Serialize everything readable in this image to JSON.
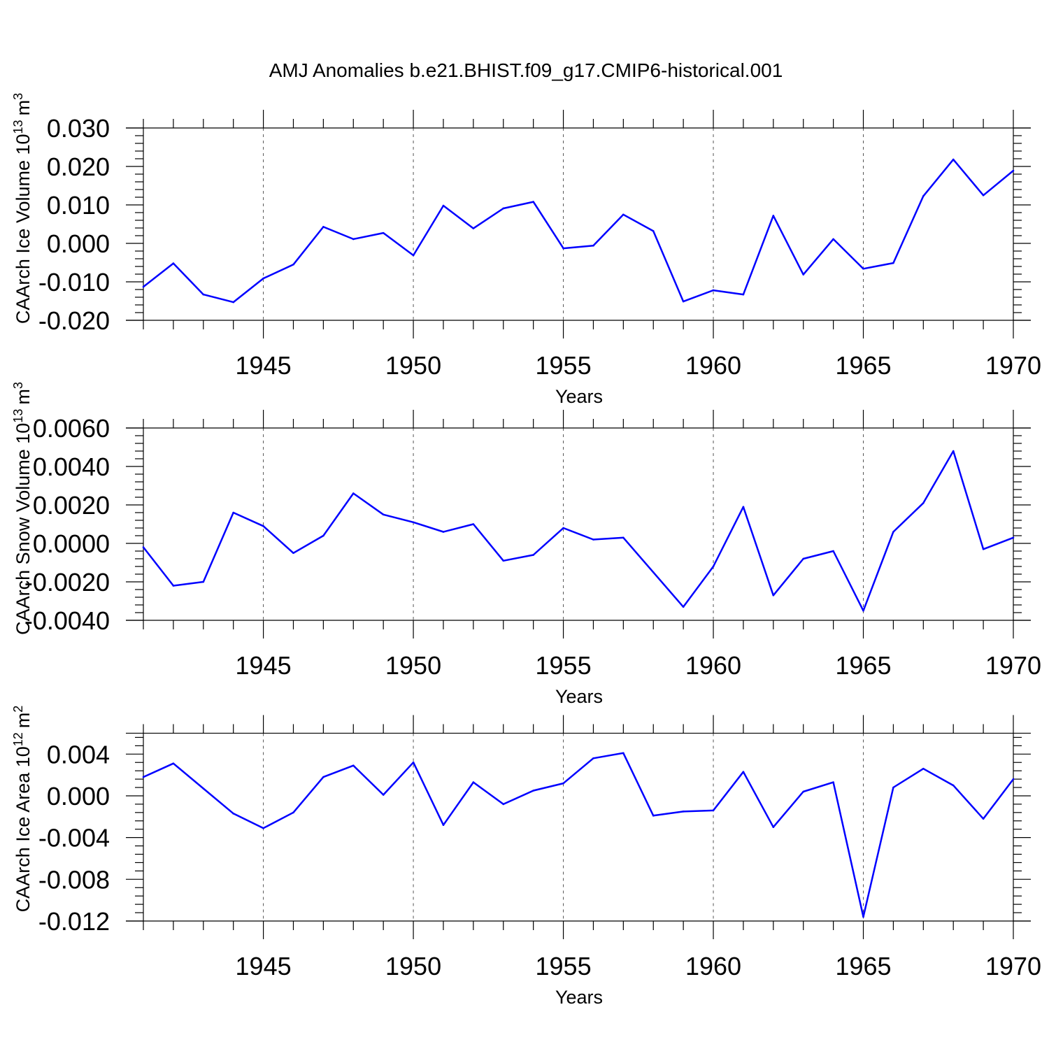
{
  "title": "AMJ Anomalies b.e21.BHIST.f09_g17.CMIP6-historical.001",
  "chart_data": [
    {
      "type": "line",
      "title": "AMJ Anomalies b.e21.BHIST.f09_g17.CMIP6-historical.001",
      "ylabel": "CAArch Ice Volume 10^13 m^3",
      "ylabel_base": "CAArch Ice Volume 10",
      "ylabel_exp": "13",
      "ylabel_unit": "m",
      "ylabel_unit_exp": "3",
      "xlabel": "Years",
      "xlim": [
        1941,
        1970
      ],
      "ylim": [
        -0.02,
        0.03
      ],
      "xticks": [
        1945,
        1950,
        1955,
        1960,
        1965,
        1970
      ],
      "yticks": [
        -0.02,
        -0.01,
        0.0,
        0.01,
        0.02,
        0.03
      ],
      "ytick_labels": [
        "-0.020",
        "-0.010",
        "0.000",
        "0.010",
        "0.020",
        "0.030"
      ],
      "grid": "dashed vertical lines at major x ticks",
      "series": [
        {
          "color": "#0000ff",
          "x": [
            1941,
            1942,
            1943,
            1944,
            1945,
            1946,
            1947,
            1948,
            1949,
            1950,
            1951,
            1952,
            1953,
            1954,
            1955,
            1956,
            1957,
            1958,
            1959,
            1960,
            1961,
            1962,
            1963,
            1964,
            1965,
            1966,
            1967,
            1968,
            1969,
            1970
          ],
          "values": [
            -0.0113,
            -0.0052,
            -0.0133,
            -0.0153,
            -0.0091,
            -0.0055,
            0.0043,
            0.0011,
            0.0027,
            -0.0031,
            0.0098,
            0.0039,
            0.0091,
            0.0108,
            -0.0013,
            -0.0006,
            0.0075,
            0.0032,
            -0.0151,
            -0.0122,
            -0.0133,
            0.0072,
            -0.0081,
            0.0011,
            -0.0066,
            -0.0051,
            0.0123,
            0.0218,
            0.0125,
            0.0189
          ]
        }
      ]
    },
    {
      "type": "line",
      "ylabel": "CAArch Snow Volume 10^13 m^3",
      "ylabel_base": "CAArch Snow Volume 10",
      "ylabel_exp": "13",
      "ylabel_unit": "m",
      "ylabel_unit_exp": "3",
      "xlabel": "Years",
      "xlim": [
        1941,
        1970
      ],
      "ylim": [
        -0.004,
        0.006
      ],
      "xticks": [
        1945,
        1950,
        1955,
        1960,
        1965,
        1970
      ],
      "yticks": [
        -0.004,
        -0.002,
        0.0,
        0.002,
        0.004,
        0.006
      ],
      "ytick_labels": [
        "-0.0040",
        "-0.0020",
        "0.0000",
        "0.0020",
        "0.0040",
        "0.0060"
      ],
      "grid": "dashed vertical lines at major x ticks",
      "series": [
        {
          "color": "#0000ff",
          "x": [
            1941,
            1942,
            1943,
            1944,
            1945,
            1946,
            1947,
            1948,
            1949,
            1950,
            1951,
            1952,
            1953,
            1954,
            1955,
            1956,
            1957,
            1958,
            1959,
            1960,
            1961,
            1962,
            1963,
            1964,
            1965,
            1966,
            1967,
            1968,
            1969,
            1970
          ],
          "values": [
            -0.0002,
            -0.0022,
            -0.002,
            0.0016,
            0.0009,
            -0.0005,
            0.0004,
            0.0026,
            0.0015,
            0.0011,
            0.0006,
            0.001,
            -0.0009,
            -0.0006,
            0.0008,
            0.0002,
            0.0003,
            -0.0015,
            -0.0033,
            -0.0012,
            0.0019,
            -0.0027,
            -0.0008,
            -0.0004,
            -0.0035,
            0.0006,
            0.0021,
            0.0048,
            -0.0003,
            0.0003
          ]
        }
      ]
    },
    {
      "type": "line",
      "ylabel": "CAArch Ice Area 10^12 m^2",
      "ylabel_base": "CAArch Ice Area 10",
      "ylabel_exp": "12",
      "ylabel_unit": "m",
      "ylabel_unit_exp": "2",
      "xlabel": "Years",
      "xlim": [
        1941,
        1970
      ],
      "ylim": [
        -0.012,
        0.006
      ],
      "xticks": [
        1945,
        1950,
        1955,
        1960,
        1965,
        1970
      ],
      "yticks": [
        -0.012,
        -0.008,
        -0.004,
        0.0,
        0.004
      ],
      "ytick_labels": [
        "-0.012",
        "-0.008",
        "-0.004",
        "0.000",
        "0.004"
      ],
      "grid": "dashed vertical lines at major x ticks",
      "series": [
        {
          "color": "#0000ff",
          "x": [
            1941,
            1942,
            1943,
            1944,
            1945,
            1946,
            1947,
            1948,
            1949,
            1950,
            1951,
            1952,
            1953,
            1954,
            1955,
            1956,
            1957,
            1958,
            1959,
            1960,
            1961,
            1962,
            1963,
            1964,
            1965,
            1966,
            1967,
            1968,
            1969,
            1970
          ],
          "values": [
            0.0018,
            0.0031,
            0.0007,
            -0.0017,
            -0.0031,
            -0.0016,
            0.0018,
            0.0029,
            0.0001,
            0.0032,
            -0.0028,
            0.0013,
            -0.0008,
            0.0005,
            0.0012,
            0.0036,
            0.0041,
            -0.0019,
            -0.0015,
            -0.0014,
            0.0023,
            -0.003,
            0.0004,
            0.0013,
            -0.0116,
            0.0008,
            0.0026,
            0.001,
            -0.0022,
            0.0016
          ]
        }
      ]
    }
  ]
}
